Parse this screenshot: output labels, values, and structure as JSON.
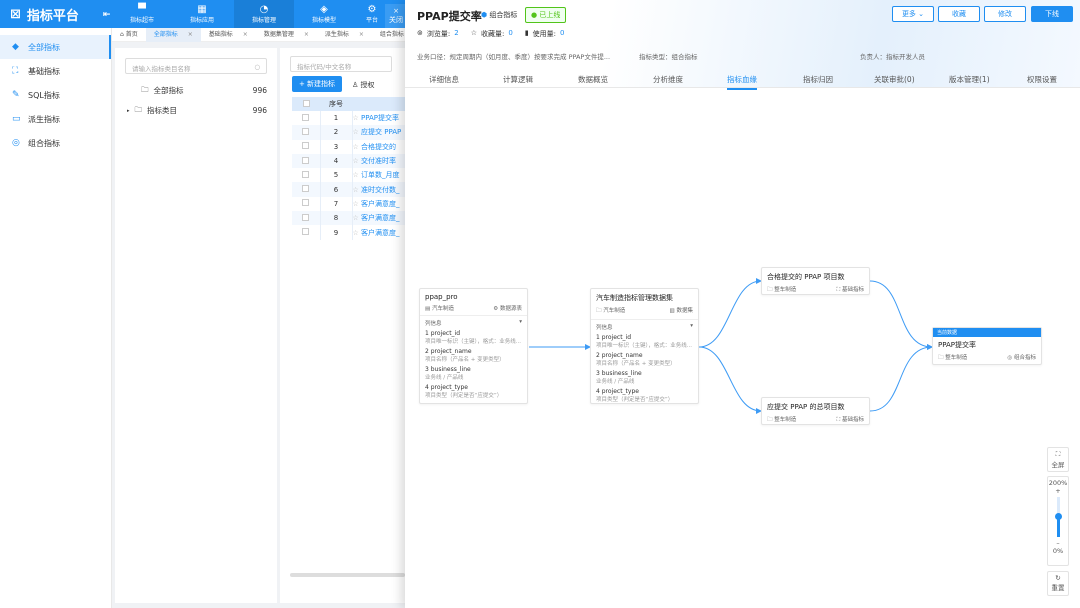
{
  "app": {
    "title": "指标平台"
  },
  "topnav": [
    {
      "label": "指标超市",
      "icon": "store-icon"
    },
    {
      "label": "指标应用",
      "icon": "grid-icon"
    },
    {
      "label": "指标管理",
      "icon": "pie-chart-icon",
      "active": true
    },
    {
      "label": "指标模型",
      "icon": "model-icon"
    },
    {
      "label": "平台",
      "icon": "gear-icon"
    }
  ],
  "close_label": "关闭",
  "sidebar": {
    "items": [
      {
        "label": "全部指标",
        "active": true
      },
      {
        "label": "基础指标"
      },
      {
        "label": "SQL指标"
      },
      {
        "label": "派生指标"
      },
      {
        "label": "组合指标"
      }
    ]
  },
  "tabs": [
    {
      "label": "首页"
    },
    {
      "label": "全部指标",
      "active": true
    },
    {
      "label": "基础指标"
    },
    {
      "label": "数据集管理"
    },
    {
      "label": "派生指标"
    },
    {
      "label": "组合指标"
    }
  ],
  "tree": {
    "search_placeholder": "请输入指标类目名称",
    "items": [
      {
        "label": "全部指标",
        "count": "996"
      },
      {
        "label": "指标类目",
        "count": "996"
      }
    ]
  },
  "list": {
    "search_placeholder": "指标代码/中文名称",
    "new_button": "新建指标",
    "auth_button": "授权",
    "columns": [
      "序号"
    ],
    "rows": [
      {
        "no": "1",
        "name": "PPAP提交率"
      },
      {
        "no": "2",
        "name": "应提交 PPAP"
      },
      {
        "no": "3",
        "name": "合格提交的"
      },
      {
        "no": "4",
        "name": "交付准时率"
      },
      {
        "no": "5",
        "name": "订单数_月度"
      },
      {
        "no": "6",
        "name": "准时交付数_"
      },
      {
        "no": "7",
        "name": "客户满意度_"
      },
      {
        "no": "8",
        "name": "客户满意度_"
      },
      {
        "no": "9",
        "name": "客户满意度_"
      }
    ]
  },
  "detail": {
    "title": "PPAP提交率",
    "type_tag": "组合指标",
    "status": "已上线",
    "buttons": {
      "more": "更多",
      "favorite": "收藏",
      "edit": "修改",
      "offline": "下线"
    },
    "stats": {
      "views_label": "浏览量:",
      "views": "2",
      "favs_label": "收藏量:",
      "favs": "0",
      "uses_label": "使用量:",
      "uses": "0"
    },
    "info": {
      "caliber": "业务口径：规定周期内（如月度、季度）按要求完成 PPAP文件提...",
      "type": "指标类型：组合指标",
      "owner": "负责人：指标开发人员"
    },
    "tabs": [
      "详细信息",
      "计算逻辑",
      "数据概览",
      "分析维度",
      "指标血缘",
      "指标归因",
      "关联审批(0)",
      "版本管理(1)",
      "权限设置"
    ],
    "active_tab": "指标血缘"
  },
  "lineage": {
    "source": {
      "title": "ppap_pro",
      "domain": "汽车制造",
      "kind": "数据源表",
      "cols_label": "列信息",
      "columns": [
        {
          "n": "1 project_id",
          "d": "项目唯一标识（主键），格式：业务线..."
        },
        {
          "n": "2 project_name",
          "d": "项目名称（产品名 + 变更类型）"
        },
        {
          "n": "3 business_line",
          "d": "业务线 / 产品线"
        },
        {
          "n": "4 project_type",
          "d": "项目类型（判定是否“应提交”）"
        }
      ]
    },
    "dataset": {
      "title": "汽车制造指标管理数据集",
      "domain": "汽车制造",
      "kind": "数据集",
      "cols_label": "列信息",
      "columns": [
        {
          "n": "1 project_id",
          "d": "项目唯一标识（主键），格式：业务线..."
        },
        {
          "n": "2 project_name",
          "d": "项目名称（产品名 + 变更类型）"
        },
        {
          "n": "3 business_line",
          "d": "业务线 / 产品线"
        },
        {
          "n": "4 project_type",
          "d": "项目类型（判定是否“应提交”）"
        }
      ]
    },
    "metric1": {
      "title": "合格提交的 PPAP 项目数",
      "domain": "整车制造",
      "kind": "基础指标"
    },
    "metric2": {
      "title": "应提交 PPAP 的总项目数",
      "domain": "整车制造",
      "kind": "基础指标"
    },
    "current": {
      "header": "当前数据",
      "title": "PPAP提交率",
      "domain": "整车制造",
      "kind": "组合指标"
    }
  },
  "controls": {
    "fullscreen": "全屏",
    "zoom_max": "200%",
    "zoom_min": "0%",
    "reset": "重置",
    "zoom_level_percent": 100
  },
  "colors": {
    "primary": "#1f8ef1",
    "success": "#52c41a"
  }
}
